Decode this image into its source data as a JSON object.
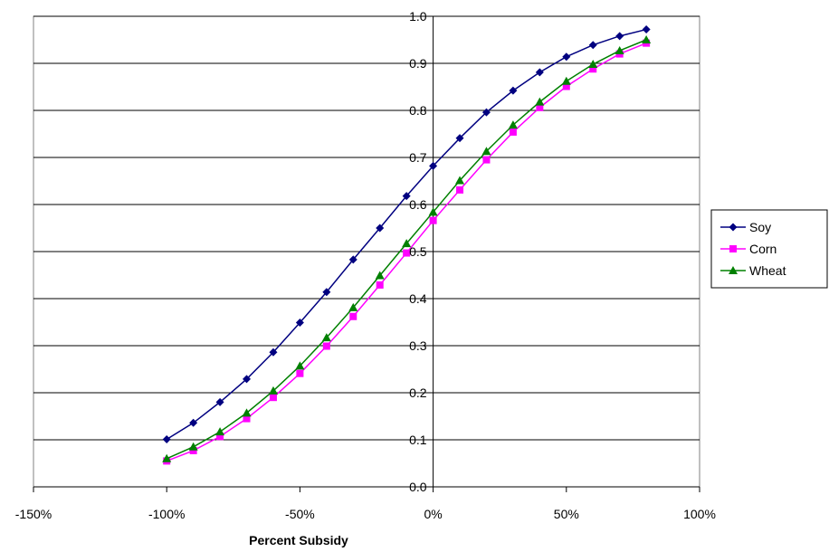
{
  "chart_data": {
    "type": "line",
    "title": "",
    "xlabel": "Percent Subsidy",
    "ylabel": "",
    "xlim": [
      -1.5,
      1.0
    ],
    "ylim": [
      0.0,
      1.0
    ],
    "x_ticks": [
      -1.5,
      -1.0,
      -0.5,
      0.0,
      0.5,
      1.0
    ],
    "x_tick_labels": [
      "-150%",
      "-100%",
      "-50%",
      "0%",
      "50%",
      "100%"
    ],
    "y_ticks": [
      0.0,
      0.1,
      0.2,
      0.3,
      0.4,
      0.5,
      0.6,
      0.7,
      0.8,
      0.9,
      1.0
    ],
    "y_tick_labels": [
      "0.0",
      "0.1",
      "0.2",
      "0.3",
      "0.4",
      "0.5",
      "0.6",
      "0.7",
      "0.8",
      "0.9",
      "1.0"
    ],
    "grid": "horizontal",
    "legend_position": "right",
    "x": [
      -1.0,
      -0.9,
      -0.8,
      -0.7,
      -0.6,
      -0.5,
      -0.4,
      -0.3,
      -0.2,
      -0.1,
      0.0,
      0.1,
      0.2,
      0.3,
      0.4,
      0.5,
      0.6,
      0.7,
      0.8
    ],
    "series": [
      {
        "name": "Soy",
        "color": "#000080",
        "marker": "diamond",
        "values": [
          0.101,
          0.136,
          0.18,
          0.229,
          0.286,
          0.349,
          0.414,
          0.483,
          0.55,
          0.618,
          0.682,
          0.741,
          0.796,
          0.842,
          0.881,
          0.914,
          0.939,
          0.958,
          0.972
        ]
      },
      {
        "name": "Corn",
        "color": "#ff00ff",
        "marker": "square",
        "values": [
          0.055,
          0.077,
          0.107,
          0.145,
          0.19,
          0.241,
          0.299,
          0.362,
          0.429,
          0.497,
          0.566,
          0.631,
          0.695,
          0.754,
          0.806,
          0.851,
          0.888,
          0.92,
          0.943
        ]
      },
      {
        "name": "Wheat",
        "color": "#008000",
        "marker": "triangle",
        "values": [
          0.06,
          0.085,
          0.117,
          0.157,
          0.204,
          0.257,
          0.317,
          0.381,
          0.449,
          0.517,
          0.584,
          0.651,
          0.713,
          0.769,
          0.818,
          0.862,
          0.898,
          0.927,
          0.95
        ]
      }
    ]
  }
}
